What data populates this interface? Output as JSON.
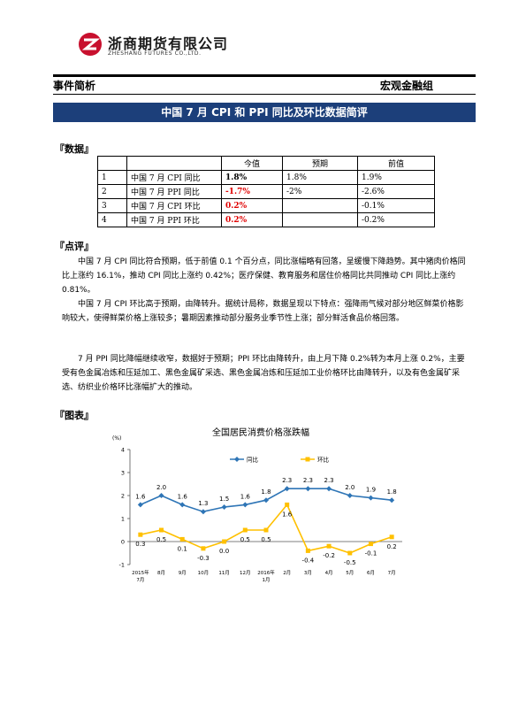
{
  "brand": {
    "name": "浙商期货有限公司",
    "subtitle": "ZHESHANG FUTURES CO.,LTD."
  },
  "header": {
    "left": "事件简析",
    "right": "宏观金融组"
  },
  "title": "中国 7 月 CPI 和 PPI 同比及环比数据简评",
  "sections": {
    "data": "『数据』",
    "review": "『点评』",
    "chart": "『图表』"
  },
  "table": {
    "headers": [
      "",
      "",
      "今值",
      "预期",
      "前值"
    ],
    "rows": [
      {
        "no": "1",
        "name": "中国 7 月 CPI 同比",
        "current": "1.8%",
        "expected": "1.8%",
        "previous": "1.9%"
      },
      {
        "no": "2",
        "name": "中国 7 月 PPI 同比",
        "current": "-1.7%",
        "expected": "-2%",
        "previous": "-2.6%"
      },
      {
        "no": "3",
        "name": "中国 7 月 CPI 环比",
        "current": "0.2%",
        "expected": "",
        "previous": "-0.1%"
      },
      {
        "no": "4",
        "name": "中国 7 月 PPI 环比",
        "current": "0.2%",
        "expected": "",
        "previous": "-0.2%"
      }
    ]
  },
  "paragraphs": {
    "p1": "中国 7 月 CPI 同比符合预期，低于前值 0.1 个百分点，同比涨幅略有回落，呈缓慢下降趋势。其中猪肉价格同比上涨约 16.1%，推动 CPI 同比上涨约 0.42%；医疗保健、教育服务和居住价格同比共同推动 CPI 同比上涨约 0.81%。",
    "p2": "中国 7 月 CPI 环比高于预期，由降转升。据统计局称，数据呈现以下特点：强降雨气候对部分地区鲜菜价格影响较大，使得鲜菜价格上涨较多；暑期因素推动部分服务业季节性上涨；部分鲜活食品价格回落。",
    "p3": "7 月 PPI 同比降幅继续收窄，数据好于预期；PPI 环比由降转升，由上月下降 0.2%转为本月上涨 0.2%，主要受有色金属冶炼和压延加工、黑色金属矿采选、黑色金属冶炼和压延加工业价格环比由降转升，以及有色金属矿采选、纺织业价格环比涨幅扩大的推动。"
  },
  "chart_data": {
    "type": "line",
    "title": "全国居民消费价格涨跌幅",
    "unit": "(%)",
    "categories": [
      "2015年7月",
      "8月",
      "9月",
      "10月",
      "11月",
      "12月",
      "2016年1月",
      "2月",
      "3月",
      "4月",
      "5月",
      "6月",
      "7月"
    ],
    "category_lines": [
      [
        "2015年",
        "7月"
      ],
      [
        "8月"
      ],
      [
        "9月"
      ],
      [
        "10月"
      ],
      [
        "11月"
      ],
      [
        "12月"
      ],
      [
        "2016年",
        "1月"
      ],
      [
        "2月"
      ],
      [
        "3月"
      ],
      [
        "4月"
      ],
      [
        "5月"
      ],
      [
        "6月"
      ],
      [
        "7月"
      ]
    ],
    "series": [
      {
        "name": "同比",
        "color": "#2e75b6",
        "marker": "diamond",
        "values": [
          1.6,
          2.0,
          1.6,
          1.3,
          1.5,
          1.6,
          1.8,
          2.3,
          2.3,
          2.3,
          2.0,
          1.9,
          1.8
        ],
        "labels": [
          "1.6",
          "2.0",
          "1.6",
          "1.3",
          "1.5",
          "1.6",
          "1.8",
          "2.3",
          "2.3",
          "2.3",
          "2.0",
          "1.9",
          "1.8"
        ]
      },
      {
        "name": "环比",
        "color": "#ffc000",
        "marker": "square",
        "values": [
          0.3,
          0.5,
          0.1,
          -0.3,
          0.0,
          0.5,
          0.5,
          1.6,
          -0.4,
          -0.2,
          -0.5,
          -0.1,
          0.2
        ],
        "labels": [
          "0.3",
          "0.5",
          "0.1",
          "-0.3",
          "0.0",
          "0.5",
          "0.5",
          "1.6",
          "-0.4",
          "-0.2",
          "-0.5",
          "-0.1",
          "0.2"
        ]
      }
    ],
    "yticks": [
      "4",
      "3",
      "2",
      "1",
      "0",
      "-1"
    ],
    "ylim": [
      -1,
      4
    ],
    "grid": false,
    "legend": "top"
  }
}
